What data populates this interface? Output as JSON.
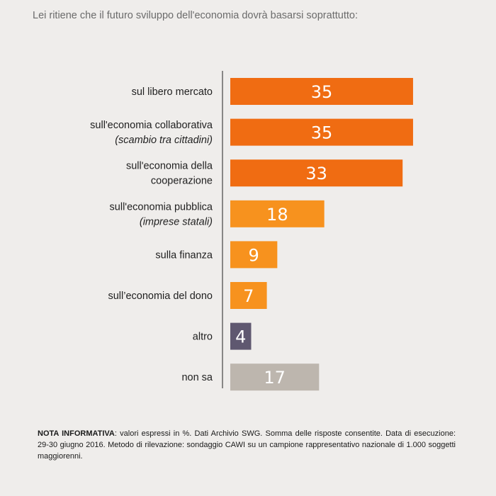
{
  "title": "Lei ritiene che il futuro sviluppo dell'economia dovrà basarsi soprattutto:",
  "chart_data": {
    "type": "bar",
    "orientation": "horizontal",
    "title": "Lei ritiene che il futuro sviluppo dell'economia dovrà basarsi soprattutto:",
    "xlabel": "",
    "ylabel": "",
    "xlim": [
      0,
      40
    ],
    "grid": false,
    "legend": "none",
    "categories": [
      {
        "lines": [
          "sul libero mercato"
        ],
        "italic": [
          false
        ]
      },
      {
        "lines": [
          "sull'economia collaborativa",
          "(scambio tra cittadini)"
        ],
        "italic": [
          false,
          true
        ]
      },
      {
        "lines": [
          "sull'economia della",
          "cooperazione"
        ],
        "italic": [
          false,
          false
        ]
      },
      {
        "lines": [
          "sull'economia pubblica",
          "(imprese statali)"
        ],
        "italic": [
          false,
          true
        ]
      },
      {
        "lines": [
          "sulla finanza"
        ],
        "italic": [
          false
        ]
      },
      {
        "lines": [
          "sull’economia del dono"
        ],
        "italic": [
          false
        ]
      },
      {
        "lines": [
          "altro"
        ],
        "italic": [
          false
        ]
      },
      {
        "lines": [
          "non sa"
        ],
        "italic": [
          false
        ]
      }
    ],
    "values": [
      35,
      35,
      33,
      18,
      9,
      7,
      4,
      17
    ],
    "colors": [
      "#f06c12",
      "#f06c12",
      "#f06c12",
      "#f7921e",
      "#f7921e",
      "#f7921e",
      "#5f5870",
      "#bdb6ae"
    ]
  },
  "note": {
    "label": "NOTA INFORMATIVA",
    "text": ": valori espressi in %. Dati Archivio SWG. Somma delle risposte consentite. Data di esecuzione: 29-30 giugno 2016. Metodo di rilevazione: sondaggio CAWI su un campione rappresentativo nazionale di 1.000 soggetti maggiorenni."
  },
  "colors": {
    "background": "#efedeb",
    "axis": "#444444"
  }
}
